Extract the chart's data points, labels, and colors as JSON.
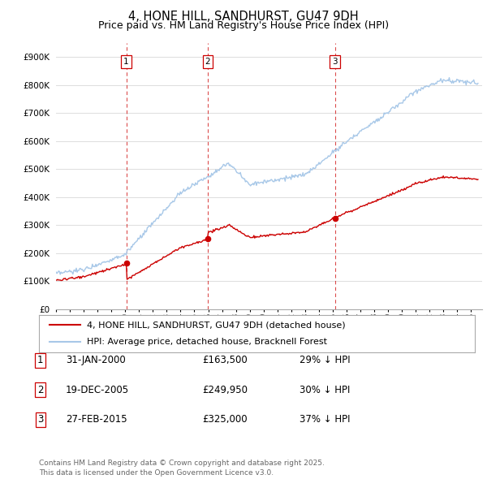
{
  "title": "4, HONE HILL, SANDHURST, GU47 9DH",
  "subtitle": "Price paid vs. HM Land Registry's House Price Index (HPI)",
  "xlim_start": 1995.0,
  "xlim_end": 2025.8,
  "ylim": [
    0,
    950000
  ],
  "yticks": [
    0,
    100000,
    200000,
    300000,
    400000,
    500000,
    600000,
    700000,
    800000,
    900000
  ],
  "ytick_labels": [
    "£0",
    "£100K",
    "£200K",
    "£300K",
    "£400K",
    "£500K",
    "£600K",
    "£700K",
    "£800K",
    "£900K"
  ],
  "hpi_color": "#a8c8e8",
  "price_color": "#cc0000",
  "vline_color": "#cc0000",
  "bg_color": "#ffffff",
  "grid_color": "#dddddd",
  "sale_dates": [
    2000.08,
    2005.96,
    2015.16
  ],
  "sale_prices": [
    163500,
    249950,
    325000
  ],
  "sale_labels": [
    "1",
    "2",
    "3"
  ],
  "legend_line1": "4, HONE HILL, SANDHURST, GU47 9DH (detached house)",
  "legend_line2": "HPI: Average price, detached house, Bracknell Forest",
  "table_rows": [
    [
      "1",
      "31-JAN-2000",
      "£163,500",
      "29% ↓ HPI"
    ],
    [
      "2",
      "19-DEC-2005",
      "£249,950",
      "30% ↓ HPI"
    ],
    [
      "3",
      "27-FEB-2015",
      "£325,000",
      "37% ↓ HPI"
    ]
  ],
  "footnote": "Contains HM Land Registry data © Crown copyright and database right 2025.\nThis data is licensed under the Open Government Licence v3.0.",
  "title_fontsize": 10.5,
  "subtitle_fontsize": 9,
  "tick_fontsize": 7.5,
  "legend_fontsize": 8,
  "table_fontsize": 8.5,
  "footnote_fontsize": 6.5
}
